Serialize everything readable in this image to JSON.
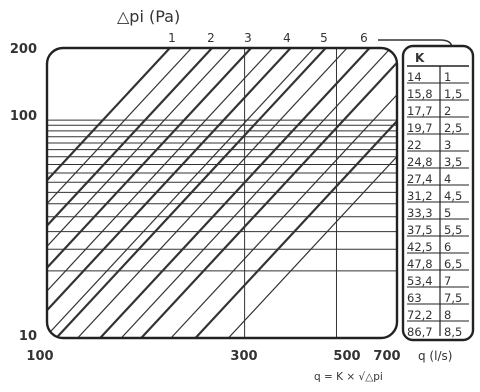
{
  "chart_data": {
    "type": "line",
    "title": "△pi (Pa)",
    "xlabel": "q (l/s)",
    "formula": "q = K × √△pi",
    "x_scale": "log",
    "y_scale": "log",
    "xlim": [
      100,
      700
    ],
    "ylim": [
      10,
      200
    ],
    "x_ticks": [
      100,
      300,
      500,
      700
    ],
    "x_tick_labels": [
      "100",
      "300",
      "500",
      "700"
    ],
    "y_ticks": [
      10,
      100,
      200
    ],
    "y_tick_labels": [
      "10",
      "100",
      "200"
    ],
    "top_ticks": [
      1,
      2,
      3,
      4,
      5,
      6
    ],
    "top_tick_labels": [
      "1",
      "2",
      "3",
      "4",
      "5",
      "6"
    ],
    "table": {
      "header_k": "K",
      "rows": [
        {
          "k": "14",
          "n": "1"
        },
        {
          "k": "15,8",
          "n": "1,5"
        },
        {
          "k": "17,7",
          "n": "2"
        },
        {
          "k": "19,7",
          "n": "2,5"
        },
        {
          "k": "22",
          "n": "3"
        },
        {
          "k": "24,8",
          "n": "3,5"
        },
        {
          "k": "27,4",
          "n": "4"
        },
        {
          "k": "31,2",
          "n": "4,5"
        },
        {
          "k": "33,3",
          "n": "5"
        },
        {
          "k": "37,5",
          "n": "5,5"
        },
        {
          "k": "42,5",
          "n": "6"
        },
        {
          "k": "47,8",
          "n": "6,5"
        },
        {
          "k": "53,4",
          "n": "7"
        },
        {
          "k": "63",
          "n": "7,5"
        },
        {
          "k": "72,2",
          "n": "8"
        },
        {
          "k": "86,7",
          "n": "8,5"
        }
      ]
    },
    "series_k": [
      14,
      15.8,
      17.7,
      19.7,
      22,
      24.8,
      27.4,
      31.2,
      33.3,
      37.5,
      42.5,
      47.8,
      53.4,
      63,
      72.2,
      86.7
    ],
    "horizontal_gridlines": [
      20,
      25,
      30,
      35,
      40,
      45,
      50,
      55,
      60,
      65,
      70,
      75,
      80,
      85,
      90,
      95
    ],
    "vertical_gridlines": [
      300,
      500,
      700
    ],
    "colors": {
      "line": "#333333",
      "frame": "#222222",
      "background": "#ffffff"
    }
  }
}
